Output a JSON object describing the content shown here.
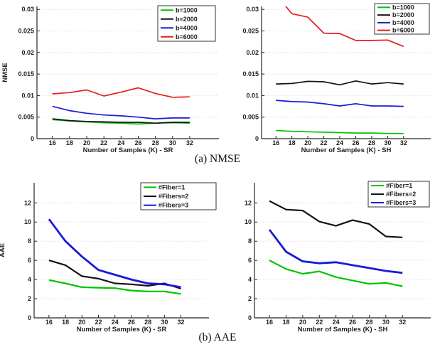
{
  "figure": {
    "background": "#ffffff",
    "captions": {
      "a": "(a) NMSE",
      "b": "(b) AAE"
    }
  },
  "colors": {
    "green": "#00c400",
    "black": "#141414",
    "blue": "#1a1ad6",
    "red": "#e51d1d",
    "grid": "#dedede",
    "axis": "#262626",
    "text": "#1f1f1f",
    "legend_border": "#333333",
    "legend_background": "#ffffff"
  },
  "chart_data": [
    {
      "id": "nmse_sr",
      "type": "line",
      "title": "",
      "xlabel": "Number of Samples (K) - SR",
      "ylabel": "NMSE",
      "x": [
        16,
        18,
        20,
        22,
        24,
        26,
        28,
        30,
        32
      ],
      "xtick_labels": [
        "16",
        "18",
        "20",
        "22",
        "24",
        "26",
        "28",
        "30",
        "32"
      ],
      "yticks": [
        0,
        0.005,
        0.01,
        0.015,
        0.02,
        0.025,
        0.03
      ],
      "ytick_labels": [
        "0",
        "0.005",
        "0.01",
        "0.015",
        "0.02",
        "0.025",
        "0.03"
      ],
      "xlim": [
        14.2,
        35.4
      ],
      "ylim": [
        0,
        0.0307
      ],
      "grid": "horizontal-dotted",
      "legend_position": "top-right",
      "series": [
        {
          "name": "b=1000",
          "color": "green",
          "values": [
            0.0044,
            0.0041,
            0.0039,
            0.0037,
            0.0036,
            0.0034,
            0.0036,
            0.0037,
            0.0036
          ]
        },
        {
          "name": "b=2000",
          "color": "black",
          "values": [
            0.0046,
            0.0042,
            0.004,
            0.0039,
            0.0038,
            0.0038,
            0.0036,
            0.0038,
            0.0038
          ]
        },
        {
          "name": "b=4000",
          "color": "blue",
          "values": [
            0.0075,
            0.0065,
            0.0059,
            0.0055,
            0.0053,
            0.005,
            0.0046,
            0.0048,
            0.0048
          ]
        },
        {
          "name": "b=6000",
          "color": "red",
          "values": [
            0.0104,
            0.0107,
            0.0113,
            0.0099,
            0.0108,
            0.0118,
            0.0105,
            0.0096,
            0.0097
          ]
        }
      ]
    },
    {
      "id": "nmse_sh",
      "type": "line",
      "title": "",
      "xlabel": "Number of Samples (K) - SH",
      "ylabel": "",
      "x": [
        16,
        18,
        20,
        22,
        24,
        26,
        28,
        30,
        32
      ],
      "xtick_labels": [
        "16",
        "18",
        "20",
        "22",
        "24",
        "26",
        "28",
        "30",
        "32"
      ],
      "yticks": [
        0,
        0.005,
        0.01,
        0.015,
        0.02,
        0.025,
        0.03
      ],
      "ytick_labels": [
        "0",
        "0.005",
        "0.01",
        "0.015",
        "0.02",
        "0.025",
        "0.03"
      ],
      "xlim": [
        14.2,
        35.4
      ],
      "ylim": [
        0,
        0.0307
      ],
      "grid": "horizontal-dotted",
      "legend_position": "top-right",
      "series": [
        {
          "name": "b=1000",
          "color": "green",
          "values": [
            0.0019,
            0.0017,
            0.0016,
            0.0015,
            0.0014,
            0.0013,
            0.0013,
            0.0012,
            0.0012
          ]
        },
        {
          "name": "b=2000",
          "color": "black",
          "values": [
            0.0127,
            0.0128,
            0.0133,
            0.0132,
            0.0125,
            0.0134,
            0.0127,
            0.013,
            0.0127
          ]
        },
        {
          "name": "b=4000",
          "color": "blue",
          "values": [
            0.0089,
            0.0086,
            0.0085,
            0.0081,
            0.0076,
            0.0081,
            0.0076,
            0.0076,
            0.0075
          ]
        },
        {
          "name": "b=6000",
          "color": "red",
          "values": [
            0.0335,
            0.029,
            0.0282,
            0.0245,
            0.0244,
            0.0228,
            0.0228,
            0.0229,
            0.0214
          ]
        }
      ]
    },
    {
      "id": "aae_sr",
      "type": "line",
      "title": "",
      "xlabel": "Number of Samples (K) - SR",
      "ylabel": "AAE",
      "x": [
        16,
        18,
        20,
        22,
        24,
        26,
        28,
        30,
        32
      ],
      "xtick_labels": [
        "16",
        "18",
        "20",
        "22",
        "24",
        "26",
        "28",
        "30",
        "32"
      ],
      "yticks": [
        0,
        2,
        4,
        6,
        8,
        10,
        12
      ],
      "ytick_labels": [
        "0",
        "2",
        "4",
        "6",
        "8",
        "10",
        "12"
      ],
      "xlim": [
        14.2,
        35.4
      ],
      "ylim": [
        0,
        14.1
      ],
      "grid": "horizontal-dotted",
      "legend_position": "top-right",
      "series": [
        {
          "name": "#Fiber=1",
          "color": "green",
          "values": [
            3.95,
            3.6,
            3.2,
            3.15,
            3.1,
            2.85,
            2.75,
            2.75,
            2.5
          ]
        },
        {
          "name": "#Fibers=2",
          "color": "black",
          "values": [
            6.0,
            5.5,
            4.35,
            4.1,
            3.6,
            3.5,
            3.35,
            3.6,
            3.05
          ]
        },
        {
          "name": "#Fibers=3",
          "color": "blue",
          "values": [
            10.3,
            8.0,
            6.4,
            5.0,
            4.5,
            4.0,
            3.6,
            3.5,
            3.2
          ]
        }
      ]
    },
    {
      "id": "aae_sh",
      "type": "line",
      "title": "",
      "xlabel": "Number of Samples (K) - SH",
      "ylabel": "",
      "x": [
        16,
        18,
        20,
        22,
        24,
        26,
        28,
        30,
        32
      ],
      "xtick_labels": [
        "16",
        "18",
        "20",
        "22",
        "24",
        "26",
        "28",
        "30",
        "32"
      ],
      "yticks": [
        0,
        2,
        4,
        6,
        8,
        10,
        12
      ],
      "ytick_labels": [
        "0",
        "2",
        "4",
        "6",
        "8",
        "10",
        "12"
      ],
      "xlim": [
        14.2,
        35.4
      ],
      "ylim": [
        0,
        14.1
      ],
      "grid": "horizontal-dotted",
      "legend_position": "top-right",
      "series": [
        {
          "name": "#Fiber=1",
          "color": "green",
          "values": [
            6.0,
            5.1,
            4.6,
            4.85,
            4.25,
            3.9,
            3.55,
            3.65,
            3.3
          ]
        },
        {
          "name": "#Fibers=2",
          "color": "black",
          "values": [
            12.2,
            11.3,
            11.2,
            10.05,
            9.6,
            10.2,
            9.8,
            8.5,
            8.4
          ]
        },
        {
          "name": "#Fibers=3",
          "color": "blue",
          "values": [
            9.2,
            6.9,
            5.9,
            5.7,
            5.8,
            5.5,
            5.2,
            4.9,
            4.7
          ]
        }
      ]
    }
  ]
}
